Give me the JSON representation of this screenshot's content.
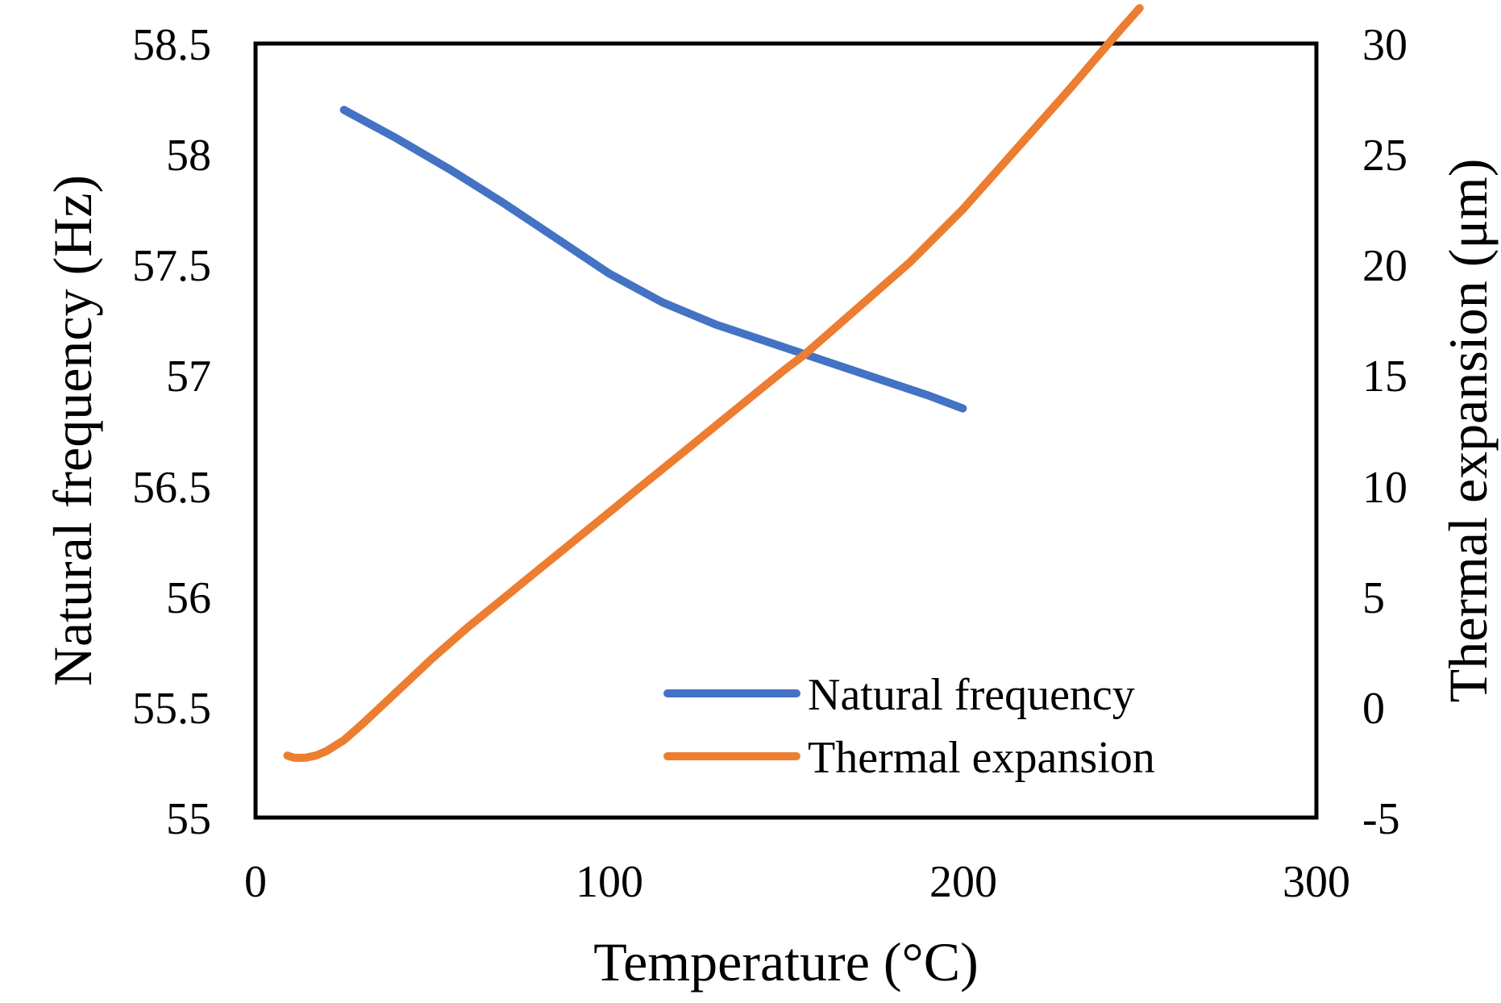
{
  "chart_data": {
    "type": "line",
    "title": "",
    "xlabel": "Temperature (°C)",
    "ylabel_left": "Natural frequency (Hz)",
    "ylabel_right": "Thermal expansion (μm)",
    "xlim": [
      0,
      300
    ],
    "ylim_left": [
      55,
      58.5
    ],
    "ylim_right": [
      -5,
      30
    ],
    "x_ticks": [
      "0",
      "100",
      "200",
      "300"
    ],
    "y_left_ticks": [
      "55",
      "55.5",
      "56",
      "56.5",
      "57",
      "57.5",
      "58",
      "58.5"
    ],
    "y_right_ticks": [
      "-5",
      "0",
      "5",
      "10",
      "15",
      "20",
      "25",
      "30"
    ],
    "grid": false,
    "legend_position": "bottom-right",
    "series": [
      {
        "name": "Natural frequency",
        "axis": "left",
        "color": "#4472C4",
        "x": [
          25,
          40,
          55,
          70,
          85,
          100,
          115,
          130,
          145,
          160,
          175,
          190,
          200
        ],
        "y": [
          58.2,
          58.07,
          57.93,
          57.78,
          57.62,
          57.46,
          57.33,
          57.23,
          57.15,
          57.07,
          56.99,
          56.91,
          56.85
        ]
      },
      {
        "name": "Thermal expansion",
        "axis": "right",
        "color": "#ED7D31",
        "x": [
          9,
          11,
          14,
          17,
          20,
          25,
          30,
          40,
          50,
          60,
          70,
          80,
          90,
          100,
          110,
          120,
          130,
          140,
          150,
          155,
          165,
          175,
          185,
          200,
          215,
          230,
          245,
          250
        ],
        "y": [
          -2.2,
          -2.3,
          -2.3,
          -2.2,
          -2.0,
          -1.5,
          -0.8,
          0.7,
          2.2,
          3.6,
          4.9,
          6.2,
          7.5,
          8.8,
          10.1,
          11.4,
          12.7,
          14.0,
          15.3,
          15.9,
          17.3,
          18.7,
          20.1,
          22.5,
          25.2,
          27.9,
          30.7,
          31.6
        ]
      }
    ]
  }
}
